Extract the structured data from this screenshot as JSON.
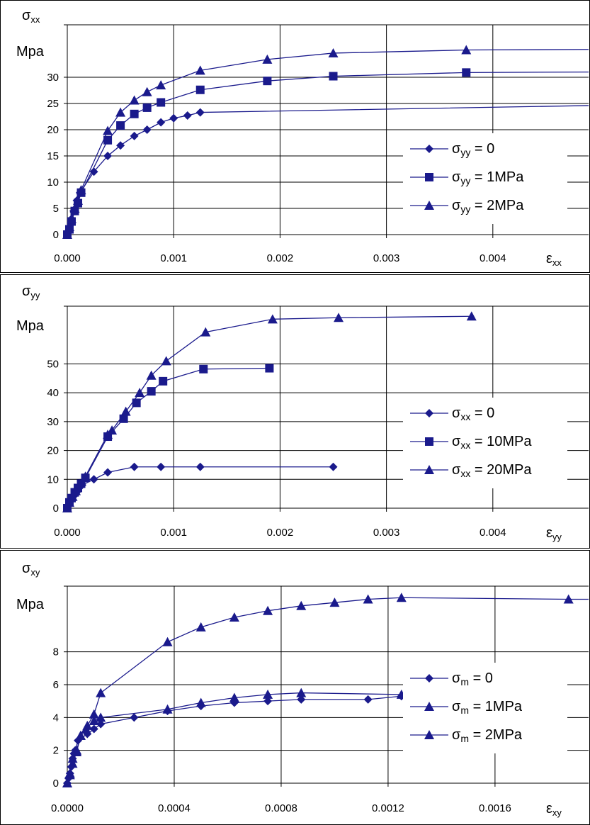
{
  "chart_data": [
    {
      "type": "line",
      "y_label_symbol": "σ",
      "y_label_sub": "xx",
      "y_unit": "Mpa",
      "x_label_symbol": "ε",
      "x_label_sub": "xx",
      "xlim": [
        0,
        0.0049
      ],
      "ylim": [
        0,
        40
      ],
      "x_ticks": [
        "0.000",
        "0.001",
        "0.002",
        "0.003",
        "0.004"
      ],
      "y_ticks": [
        "0",
        "5",
        "10",
        "15",
        "20",
        "25",
        "30"
      ],
      "grid": true,
      "legend_position": "right",
      "series": [
        {
          "legend_symbol": "σ",
          "legend_sub": "yy",
          "legend_rest": " = 0",
          "marker": "diamond",
          "x": [
            0,
            1e-05,
            2e-05,
            4e-05,
            6e-05,
            9e-05,
            0.00012,
            0.00025,
            0.00038,
            0.0005,
            0.00063,
            0.00075,
            0.00088,
            0.001,
            0.00113,
            0.00125,
            0.0049
          ],
          "y": [
            0,
            0.5,
            1.5,
            3,
            4.5,
            6.5,
            8,
            12,
            15,
            17,
            18.8,
            20,
            21.4,
            22.2,
            22.7,
            23.3,
            24.6
          ]
        },
        {
          "legend_symbol": "σ",
          "legend_sub": "yy",
          "legend_rest": " = 1MPa",
          "marker": "square",
          "x": [
            0,
            2e-05,
            4e-05,
            7e-05,
            0.0001,
            0.00013,
            0.00038,
            0.0005,
            0.00063,
            0.00075,
            0.00088,
            0.00125,
            0.00188,
            0.0025,
            0.00375,
            0.0049
          ],
          "y": [
            0,
            1,
            2.5,
            4.5,
            6,
            8,
            18,
            20.8,
            23,
            24.2,
            25.2,
            27.6,
            29.3,
            30.2,
            30.9,
            31
          ]
        },
        {
          "legend_symbol": "σ",
          "legend_sub": "yy",
          "legend_rest": " = 2MPa",
          "marker": "triangle",
          "x": [
            0,
            2e-05,
            4e-05,
            7e-05,
            0.0001,
            0.00013,
            0.00038,
            0.0005,
            0.00063,
            0.00075,
            0.00088,
            0.00125,
            0.00188,
            0.0025,
            0.00375,
            0.0049
          ],
          "y": [
            0,
            1.5,
            3,
            5,
            6.5,
            8.5,
            19.8,
            23.3,
            25.6,
            27.2,
            28.5,
            31.3,
            33.4,
            34.6,
            35.2,
            35.3
          ]
        }
      ]
    },
    {
      "type": "line",
      "y_label_symbol": "σ",
      "y_label_sub": "yy",
      "y_unit": "Mpa",
      "x_label_symbol": "ε",
      "x_label_sub": "yy",
      "xlim": [
        0,
        0.0049
      ],
      "ylim": [
        0,
        70
      ],
      "x_ticks": [
        "0.000",
        "0.001",
        "0.002",
        "0.003",
        "0.004"
      ],
      "y_ticks": [
        "0",
        "10",
        "20",
        "30",
        "40",
        "50"
      ],
      "grid": true,
      "legend_position": "right",
      "series": [
        {
          "legend_symbol": "σ",
          "legend_sub": "xx",
          "legend_rest": " = 0",
          "marker": "diamond",
          "x": [
            0,
            2e-05,
            4e-05,
            7e-05,
            0.0001,
            0.00014,
            0.00025,
            0.00038,
            0.00063,
            0.00088,
            0.00125,
            0.0025
          ],
          "y": [
            0,
            1.5,
            3,
            4.5,
            6,
            8,
            10,
            12.4,
            14.3,
            14.3,
            14.3,
            14.3
          ]
        },
        {
          "legend_symbol": "σ",
          "legend_sub": "xx",
          "legend_rest": " = 10MPa",
          "marker": "square",
          "x": [
            0,
            2e-05,
            4e-05,
            7e-05,
            0.0001,
            0.00013,
            0.00017,
            0.00038,
            0.00053,
            0.00065,
            0.00079,
            0.0009,
            0.00128,
            0.0019
          ],
          "y": [
            0,
            2,
            3.5,
            5.5,
            7,
            8.5,
            10.5,
            24.8,
            31,
            36.5,
            40.5,
            44,
            48.2,
            48.5
          ]
        },
        {
          "legend_symbol": "σ",
          "legend_sub": "xx",
          "legend_rest": " = 20MPa",
          "marker": "triangle",
          "x": [
            0,
            2e-05,
            5e-05,
            8e-05,
            0.00012,
            0.00017,
            0.00038,
            0.00042,
            0.00055,
            0.00068,
            0.00079,
            0.00093,
            0.0013,
            0.00193,
            0.00255,
            0.0038
          ],
          "y": [
            0,
            2,
            4,
            6,
            8.5,
            11,
            25.5,
            27,
            33.5,
            40,
            46,
            51,
            61,
            65.5,
            66,
            66.5
          ]
        }
      ]
    },
    {
      "type": "line",
      "y_label_symbol": "σ",
      "y_label_sub": "xy",
      "y_unit": "Mpa",
      "x_label_symbol": "ε",
      "x_label_sub": "xy",
      "xlim": [
        0,
        0.00195
      ],
      "ylim": [
        0,
        12
      ],
      "x_ticks": [
        "0.0000",
        "0.0004",
        "0.0008",
        "0.0012",
        "0.0016"
      ],
      "y_ticks": [
        "0",
        "2",
        "4",
        "6",
        "8"
      ],
      "grid": true,
      "legend_position": "right",
      "series": [
        {
          "legend_symbol": "σ",
          "legend_sub": "m",
          "legend_rest": " = 0",
          "marker": "diamond",
          "x": [
            0,
            5e-06,
            1e-05,
            1.5e-05,
            2e-05,
            2.5e-05,
            3e-05,
            4e-05,
            7.5e-05,
            0.0001,
            0.000125,
            0.00025,
            0.000375,
            0.0005,
            0.000625,
            0.00075,
            0.000875,
            0.001125,
            0.00125
          ],
          "y": [
            0,
            0.3,
            0.6,
            1,
            1.5,
            1.8,
            2,
            2.6,
            3,
            3.3,
            3.6,
            4,
            4.4,
            4.7,
            4.9,
            5.0,
            5.1,
            5.1,
            5.3
          ]
        },
        {
          "legend_symbol": "σ",
          "legend_sub": "m",
          "legend_rest": " = 1MPa",
          "marker": "triangle",
          "x": [
            0,
            1e-05,
            2e-05,
            3.5e-05,
            5e-05,
            7e-05,
            0.0001,
            0.000125,
            0.000375,
            0.0005,
            0.000625,
            0.00075,
            0.000875,
            0.00125
          ],
          "y": [
            0,
            0.5,
            1.2,
            1.9,
            2.9,
            3.3,
            3.8,
            4.0,
            4.5,
            4.9,
            5.2,
            5.4,
            5.5,
            5.4
          ]
        },
        {
          "legend_symbol": "σ",
          "legend_sub": "m",
          "legend_rest": " = 2MPa",
          "marker": "triangle",
          "x": [
            0,
            1e-05,
            2e-05,
            3.5e-05,
            5e-05,
            7.5e-05,
            0.0001,
            0.000125,
            0.000375,
            0.0005,
            0.000625,
            0.00075,
            0.000875,
            0.001,
            0.001125,
            0.00125,
            0.001875,
            0.00195
          ],
          "y": [
            0,
            0.6,
            1.5,
            2.0,
            2.9,
            3.5,
            4.2,
            5.5,
            8.6,
            9.5,
            10.1,
            10.5,
            10.8,
            11.0,
            11.2,
            11.3,
            11.2,
            11.2
          ]
        }
      ]
    }
  ]
}
